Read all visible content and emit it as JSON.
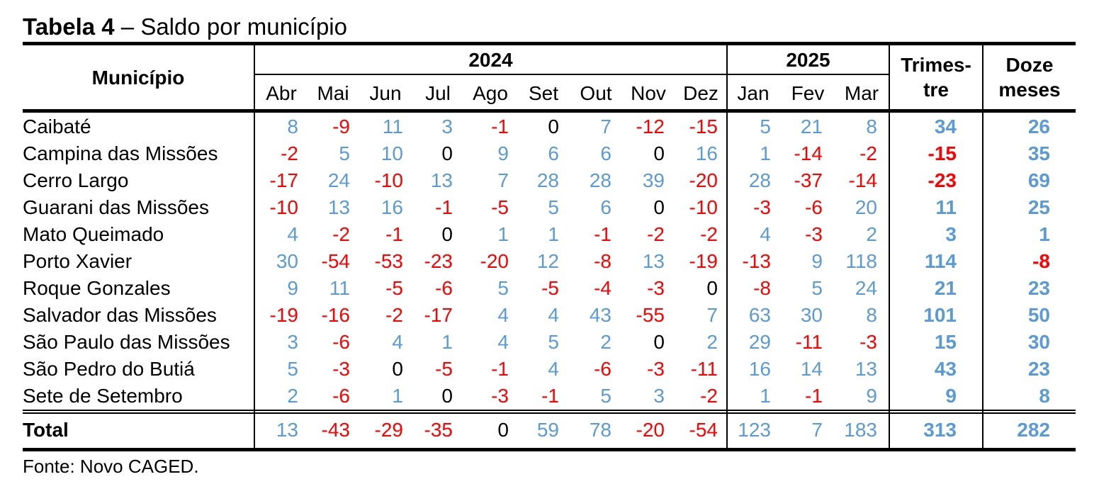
{
  "title": {
    "bold": "Tabela 4",
    "rest": " – Saldo por município"
  },
  "header": {
    "municipio": "Município",
    "year_2024": "2024",
    "year_2025": "2025",
    "trimestre_line1": "Trimes-",
    "trimestre_line2": "tre",
    "doze_line1": "Doze",
    "doze_line2": "meses",
    "months": [
      "Abr",
      "Mai",
      "Jun",
      "Jul",
      "Ago",
      "Set",
      "Out",
      "Nov",
      "Dez",
      "Jan",
      "Fev",
      "Mar"
    ]
  },
  "colors": {
    "positive": "#5b9bd5",
    "negative": "#ff0000",
    "zero": "#000000"
  },
  "rows": [
    {
      "name": "Caibaté",
      "values": [
        "8",
        "-9",
        "11",
        "3",
        "-1",
        "0",
        "7",
        "-12",
        "-15",
        "5",
        "21",
        "8"
      ],
      "trimestre": "34",
      "doze": "26"
    },
    {
      "name": "Campina das Missões",
      "values": [
        "-2",
        "5",
        "10",
        "0",
        "9",
        "6",
        "6",
        "0",
        "16",
        "1",
        "-14",
        "-2"
      ],
      "trimestre": "-15",
      "doze": "35"
    },
    {
      "name": "Cerro Largo",
      "values": [
        "-17",
        "24",
        "-10",
        "13",
        "7",
        "28",
        "28",
        "39",
        "-20",
        "28",
        "-37",
        "-14"
      ],
      "trimestre": "-23",
      "doze": "69"
    },
    {
      "name": "Guarani das Missões",
      "values": [
        "-10",
        "13",
        "16",
        "-1",
        "-5",
        "5",
        "6",
        "0",
        "-10",
        "-3",
        "-6",
        "20"
      ],
      "trimestre": "11",
      "doze": "25"
    },
    {
      "name": "Mato Queimado",
      "values": [
        "4",
        "-2",
        "-1",
        "0",
        "1",
        "1",
        "-1",
        "-2",
        "-2",
        "4",
        "-3",
        "2"
      ],
      "trimestre": "3",
      "doze": "1"
    },
    {
      "name": "Porto Xavier",
      "values": [
        "30",
        "-54",
        "-53",
        "-23",
        "-20",
        "12",
        "-8",
        "13",
        "-19",
        "-13",
        "9",
        "118"
      ],
      "trimestre": "114",
      "doze": "-8"
    },
    {
      "name": "Roque Gonzales",
      "values": [
        "9",
        "11",
        "-5",
        "-6",
        "5",
        "-5",
        "-4",
        "-3",
        "0",
        "-8",
        "5",
        "24"
      ],
      "trimestre": "21",
      "doze": "23"
    },
    {
      "name": "Salvador das Missões",
      "values": [
        "-19",
        "-16",
        "-2",
        "-17",
        "4",
        "4",
        "43",
        "-55",
        "7",
        "63",
        "30",
        "8"
      ],
      "trimestre": "101",
      "doze": "50"
    },
    {
      "name": "São Paulo das Missões",
      "values": [
        "3",
        "-6",
        "4",
        "1",
        "4",
        "5",
        "2",
        "0",
        "2",
        "29",
        "-11",
        "-3"
      ],
      "trimestre": "15",
      "doze": "30"
    },
    {
      "name": "São Pedro do Butiá",
      "values": [
        "5",
        "-3",
        "0",
        "-5",
        "-1",
        "4",
        "-6",
        "-3",
        "-11",
        "16",
        "14",
        "13"
      ],
      "trimestre": "43",
      "doze": "23"
    },
    {
      "name": "Sete de Setembro",
      "values": [
        "2",
        "-6",
        "1",
        "0",
        "-3",
        "-1",
        "5",
        "3",
        "-2",
        "1",
        "-1",
        "9"
      ],
      "trimestre": "9",
      "doze": "8"
    }
  ],
  "total": {
    "name": "Total",
    "values": [
      "13",
      "-43",
      "-29",
      "-35",
      "0",
      "59",
      "78",
      "-20",
      "-54",
      "123",
      "7",
      "183"
    ],
    "trimestre": "313",
    "doze": "282"
  },
  "source": "Fonte: Novo CAGED."
}
